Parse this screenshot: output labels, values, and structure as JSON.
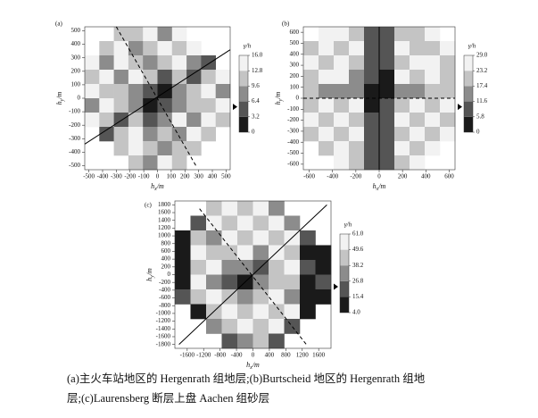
{
  "chart_data": [
    {
      "type": "heatmap",
      "panel_label": "(a)",
      "ylabel": [
        "h",
        "y",
        "/m"
      ],
      "xlabel": [
        "h",
        "x",
        "/m"
      ],
      "colorbar_title": "γ/h",
      "xlim": [
        -530,
        530
      ],
      "ylim": [
        -530,
        530
      ],
      "xticks": [
        -500,
        -400,
        -300,
        -200,
        -100,
        0,
        100,
        200,
        300,
        400,
        500
      ],
      "yticks": [
        500,
        400,
        300,
        200,
        100,
        0,
        -100,
        -200,
        -300,
        -400,
        -500
      ],
      "cticks": [
        {
          "value": 16,
          "label": "16.0"
        },
        {
          "value": 12.8,
          "label": "12.8"
        },
        {
          "value": 9.6,
          "label": "9.6"
        },
        {
          "value": 6.4,
          "label": "6.4"
        },
        {
          "value": 3.2,
          "label": "3.2"
        },
        0
      ],
      "colors": [
        "#1a1a1a",
        "#555555",
        "#8c8c8c",
        "#c4c4c4",
        "#f2f2f2"
      ],
      "z": [
        [
          null,
          null,
          12,
          10,
          14,
          9,
          13,
          null,
          null,
          null
        ],
        [
          null,
          11,
          14,
          8,
          12,
          15,
          10,
          13,
          null,
          null
        ],
        [
          13,
          9,
          15,
          11,
          7,
          12,
          14,
          9,
          6,
          null
        ],
        [
          10,
          14,
          8,
          13,
          10,
          6,
          11,
          5,
          12,
          14
        ],
        [
          15,
          11,
          12,
          9,
          5,
          2,
          7,
          10,
          13,
          9
        ],
        [
          9,
          13,
          10,
          7,
          2,
          5,
          9,
          12,
          11,
          15
        ],
        [
          14,
          12,
          5,
          10,
          6,
          9,
          13,
          8,
          14,
          10
        ],
        [
          null,
          6,
          11,
          13,
          9,
          12,
          8,
          15,
          11,
          null
        ],
        [
          null,
          null,
          10,
          14,
          11,
          7,
          12,
          10,
          null,
          null
        ],
        [
          null,
          null,
          null,
          12,
          9,
          14,
          11,
          null,
          null,
          null
        ]
      ],
      "lines": [
        {
          "style": "solid",
          "x": [
            -530,
            530
          ],
          "y": [
            -340,
            360
          ]
        },
        {
          "style": "dashed",
          "x": [
            -300,
            280
          ],
          "y": [
            530,
            -500
          ]
        }
      ]
    },
    {
      "type": "heatmap",
      "panel_label": "(b)",
      "ylabel": [
        "h",
        "y",
        "/m"
      ],
      "xlabel": [
        "h",
        "x",
        "/m"
      ],
      "colorbar_title": "γ/h",
      "xlim": [
        -650,
        650
      ],
      "ylim": [
        -650,
        650
      ],
      "xticks": [
        -600,
        -400,
        -200,
        0,
        200,
        400,
        600
      ],
      "yticks": [
        600,
        500,
        400,
        300,
        200,
        100,
        0,
        -100,
        -200,
        -300,
        -400,
        -500,
        -600
      ],
      "cticks": [
        {
          "value": 29,
          "label": "29.0"
        },
        {
          "value": 23.2,
          "label": "23.2"
        },
        {
          "value": 17.4,
          "label": "17.4"
        },
        {
          "value": 11.6,
          "label": "11.6"
        },
        {
          "value": 5.8,
          "label": "5.8"
        },
        0
      ],
      "colors": [
        "#1a1a1a",
        "#555555",
        "#8c8c8c",
        "#c4c4c4",
        "#f2f2f2"
      ],
      "z": [
        [
          null,
          24,
          27,
          20,
          8,
          10,
          22,
          18,
          26,
          null
        ],
        [
          21,
          26,
          18,
          25,
          6,
          9,
          27,
          23,
          20,
          28
        ],
        [
          27,
          19,
          24,
          22,
          11,
          7,
          20,
          26,
          24,
          19
        ],
        [
          18,
          25,
          28,
          17,
          9,
          5,
          24,
          21,
          27,
          23
        ],
        [
          20,
          14,
          12,
          16,
          4,
          3,
          15,
          13,
          18,
          22
        ],
        [
          23,
          27,
          21,
          26,
          5,
          8,
          22,
          25,
          20,
          26
        ],
        [
          26,
          20,
          25,
          19,
          10,
          6,
          27,
          19,
          24,
          21
        ],
        [
          19,
          28,
          22,
          27,
          8,
          11,
          21,
          26,
          23,
          27
        ],
        [
          null,
          22,
          26,
          20,
          7,
          9,
          25,
          22,
          28,
          null
        ],
        [
          null,
          null,
          24,
          23,
          10,
          8,
          20,
          27,
          null,
          null
        ]
      ],
      "lines": [
        {
          "style": "dashed",
          "x": [
            -650,
            650
          ],
          "y": [
            0,
            0
          ]
        },
        {
          "style": "solid",
          "x": [
            0,
            0
          ],
          "y": [
            -650,
            650
          ]
        }
      ]
    },
    {
      "type": "heatmap",
      "panel_label": "(c)",
      "ylabel": [
        "h",
        "y",
        "/m"
      ],
      "xlabel": [
        "h",
        "x",
        "/m"
      ],
      "colorbar_title": "γ/h",
      "xlim": [
        -1900,
        1900
      ],
      "ylim": [
        -1900,
        1900
      ],
      "xticks": [
        -1600,
        -1200,
        -800,
        -400,
        0,
        400,
        800,
        1200,
        1600
      ],
      "yticks": [
        1800,
        1600,
        1400,
        1200,
        1000,
        800,
        600,
        400,
        200,
        0,
        -200,
        -400,
        -600,
        -800,
        -1000,
        -1200,
        -1400,
        -1600,
        -1800
      ],
      "cticks": [
        {
          "value": 61,
          "label": "61.0"
        },
        {
          "value": 49.6,
          "label": "49.6"
        },
        {
          "value": 38.2,
          "label": "38.2"
        },
        {
          "value": 26.8,
          "label": "26.8"
        },
        {
          "value": 15.4,
          "label": "15.4"
        },
        {
          "value": 4,
          "label": "4.0"
        }
      ],
      "colors": [
        "#1a1a1a",
        "#555555",
        "#8c8c8c",
        "#c4c4c4",
        "#f2f2f2"
      ],
      "z": [
        [
          null,
          null,
          40,
          52,
          45,
          58,
          38,
          null,
          null,
          null
        ],
        [
          null,
          20,
          55,
          42,
          60,
          47,
          50,
          35,
          null,
          null
        ],
        [
          12,
          48,
          38,
          57,
          44,
          52,
          41,
          56,
          18,
          null
        ],
        [
          8,
          55,
          46,
          40,
          53,
          36,
          59,
          45,
          10,
          15
        ],
        [
          14,
          42,
          58,
          35,
          28,
          20,
          40,
          52,
          22,
          9
        ],
        [
          10,
          50,
          37,
          22,
          5,
          30,
          48,
          41,
          12,
          16
        ],
        [
          18,
          45,
          53,
          48,
          32,
          42,
          56,
          38,
          8,
          11
        ],
        [
          null,
          12,
          40,
          58,
          46,
          54,
          44,
          50,
          15,
          null
        ],
        [
          null,
          null,
          36,
          47,
          57,
          39,
          51,
          20,
          null,
          null
        ],
        [
          null,
          null,
          null,
          25,
          34,
          44,
          18,
          null,
          null,
          null
        ]
      ],
      "lines": [
        {
          "style": "solid",
          "x": [
            -1800,
            1800
          ],
          "y": [
            -1800,
            1800
          ]
        },
        {
          "style": "dashed",
          "x": [
            -1300,
            1300
          ],
          "y": [
            1700,
            -1800
          ]
        }
      ]
    }
  ],
  "caption": [
    "(a)主火车站地区的 Hergenrath 组地层;(b)Burtscheid 地区的 Hergenrath 组地",
    "层;(c)Laurensberg 断层上盘 Aachen 组砂层"
  ]
}
